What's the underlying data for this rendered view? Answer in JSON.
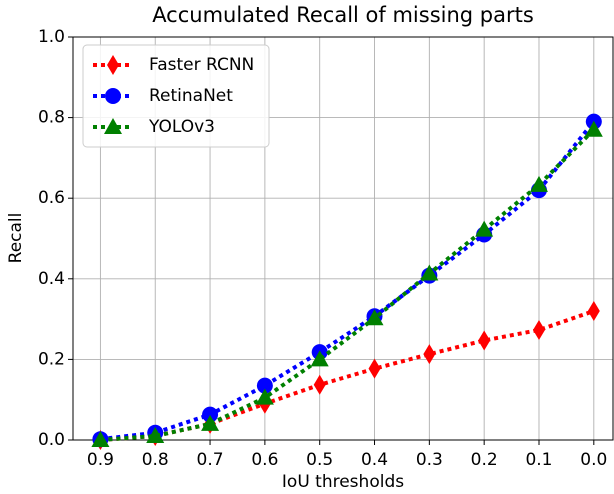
{
  "chart_data": {
    "type": "line",
    "title": "Accumulated Recall of missing parts",
    "x_label": "IoU thresholds",
    "y_label": "Recall",
    "x": [
      0.9,
      0.8,
      0.7,
      0.6,
      0.5,
      0.4,
      0.3,
      0.2,
      0.1,
      0.0
    ],
    "series": [
      {
        "name": "Faster RCNN",
        "color": "#ff0000",
        "marker": "diamond",
        "values": [
          0,
          0.01,
          0.04,
          0.09,
          0.137,
          0.177,
          0.213,
          0.247,
          0.273,
          0.32
        ]
      },
      {
        "name": "RetinaNet",
        "color": "#0000ff",
        "marker": "circle",
        "values": [
          0.002,
          0.018,
          0.063,
          0.135,
          0.218,
          0.307,
          0.408,
          0.51,
          0.62,
          0.79
        ]
      },
      {
        "name": "YOLOv3",
        "color": "#008000",
        "marker": "triangle",
        "values": [
          0,
          0.01,
          0.04,
          0.105,
          0.2,
          0.302,
          0.413,
          0.522,
          0.633,
          0.77
        ]
      }
    ],
    "xlim": [
      0.95,
      -0.035
    ],
    "xticks": [
      0.9,
      0.8,
      0.7,
      0.6,
      0.5,
      0.4,
      0.3,
      0.2,
      0.1,
      {
        "value": 0,
        "label": "0.0"
      }
    ],
    "ylim": [
      0,
      1
    ],
    "yticks": [
      {
        "value": 0,
        "label": "0.0"
      },
      0.2,
      0.4,
      0.6,
      0.8,
      {
        "value": 1,
        "label": "1.0"
      }
    ],
    "grid": true,
    "legend": "upper left"
  }
}
